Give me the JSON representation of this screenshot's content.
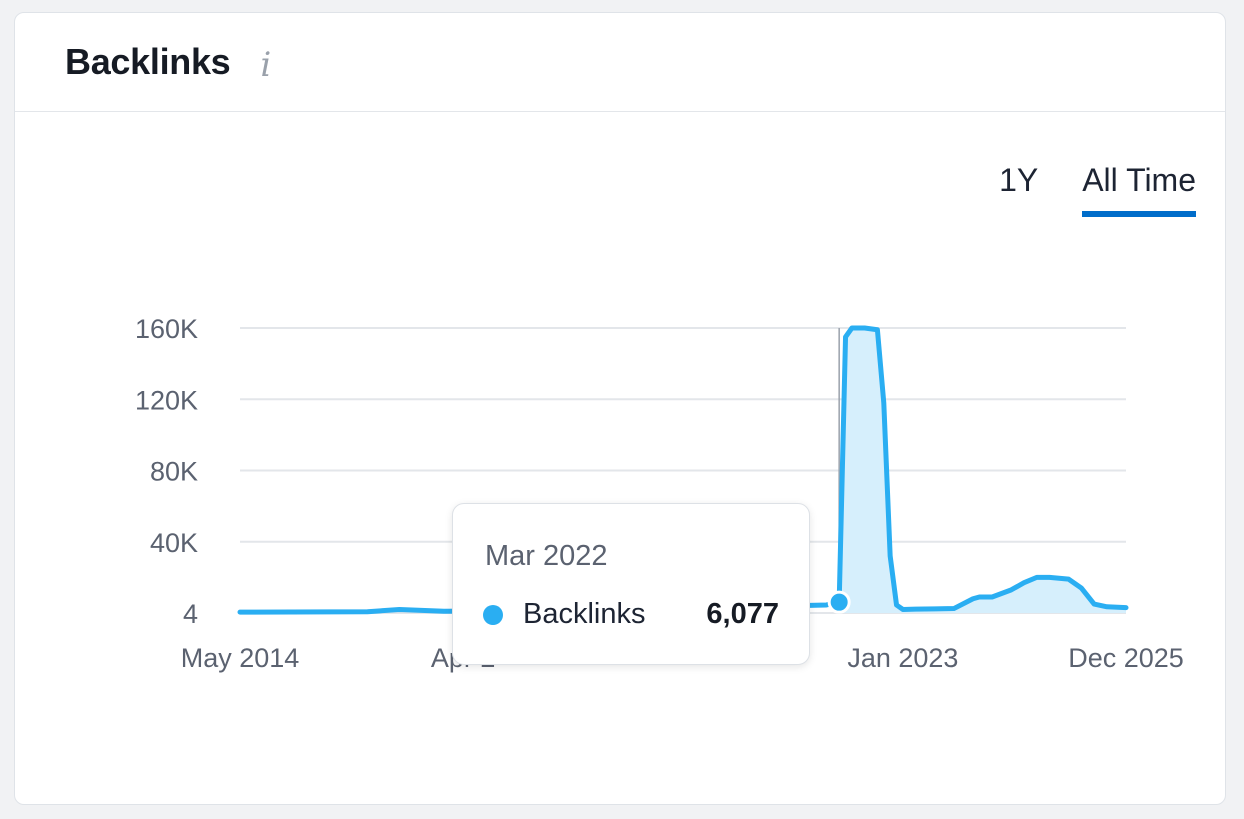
{
  "card": {
    "title": "Backlinks",
    "info_icon": "info-icon"
  },
  "tabs": [
    {
      "label": "1Y",
      "active": false
    },
    {
      "label": "All Time",
      "active": true
    }
  ],
  "tooltip": {
    "date": "Mar 2022",
    "series": "Backlinks",
    "value": "6,077"
  },
  "colors": {
    "line": "#2aaef2",
    "area": "#d6effc",
    "grid": "#e3e6ea",
    "active_tab": "#006dca"
  },
  "chart_data": {
    "type": "area",
    "title": "",
    "xlabel": "",
    "ylabel": "",
    "ylim": [
      4,
      160000
    ],
    "y_ticks": [
      {
        "value": 4,
        "label": "4"
      },
      {
        "value": 40000,
        "label": "40K"
      },
      {
        "value": 80000,
        "label": "80K"
      },
      {
        "value": 120000,
        "label": "120K"
      },
      {
        "value": 160000,
        "label": "160K"
      }
    ],
    "x_ticks": [
      "May 2014",
      "Apr 2",
      "Jan 2023",
      "Dec 2025"
    ],
    "x_ticks_full": [
      "May 2014",
      "Apr 2017",
      "Jan 2023",
      "Dec 2025"
    ],
    "xlim": [
      "2014-05",
      "2025-12"
    ],
    "series": [
      {
        "name": "Backlinks",
        "x": [
          "2014-05",
          "2016-01",
          "2016-06",
          "2017-01",
          "2018-01",
          "2019-01",
          "2020-01",
          "2021-01",
          "2022-01",
          "2022-03",
          "2022-04",
          "2022-05",
          "2022-07",
          "2022-09",
          "2022-10",
          "2022-11",
          "2022-12",
          "2023-01",
          "2023-03",
          "2023-06",
          "2023-09",
          "2023-12",
          "2024-01",
          "2024-03",
          "2024-06",
          "2024-08",
          "2024-10",
          "2024-12",
          "2025-03",
          "2025-05",
          "2025-07",
          "2025-09",
          "2025-12"
        ],
        "values": [
          500,
          700,
          2000,
          1000,
          1200,
          1800,
          2600,
          3500,
          4500,
          6077,
          155000,
          160000,
          160000,
          159000,
          118000,
          32000,
          4500,
          2000,
          2200,
          2300,
          2500,
          8000,
          9000,
          9000,
          13000,
          17000,
          20000,
          20000,
          19000,
          14000,
          5000,
          3500,
          3000
        ]
      }
    ],
    "highlight": {
      "x": "2022-03",
      "value": 6077
    },
    "legend": "none",
    "grid": true
  }
}
